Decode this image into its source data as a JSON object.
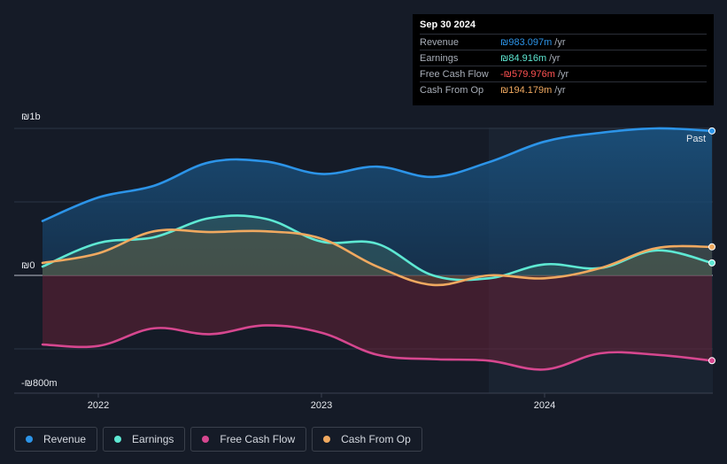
{
  "tooltip": {
    "date": "Sep 30 2024",
    "rows": [
      {
        "label": "Revenue",
        "value": "₪983.097m",
        "unit": "/yr",
        "color": "#2c94e8"
      },
      {
        "label": "Earnings",
        "value": "₪84.916m",
        "unit": "/yr",
        "color": "#5ee8d3"
      },
      {
        "label": "Free Cash Flow",
        "value": "-₪579.976m",
        "unit": "/yr",
        "color": "#ff5252"
      },
      {
        "label": "Cash From Op",
        "value": "₪194.179m",
        "unit": "/yr",
        "color": "#f0a960"
      }
    ]
  },
  "legend": {
    "items": [
      {
        "label": "Revenue",
        "color": "#2c94e8"
      },
      {
        "label": "Earnings",
        "color": "#5ee8d3"
      },
      {
        "label": "Free Cash Flow",
        "color": "#d6478f"
      },
      {
        "label": "Cash From Op",
        "color": "#f0a960"
      }
    ]
  },
  "chart_data": {
    "type": "area",
    "y_tick_labels": [
      "₪1b",
      "₪0",
      "-₪800m"
    ],
    "y_tick_values": [
      1000,
      0,
      -800
    ],
    "ylim": [
      -800,
      1000
    ],
    "x_tick_labels": [
      "2022",
      "2023",
      "2024"
    ],
    "x_tick_values": [
      2022.0,
      2023.0,
      2024.0
    ],
    "xlim": [
      2021.75,
      2024.75
    ],
    "past_label": "Past",
    "past_start": 2023.75,
    "series": [
      {
        "name": "Revenue",
        "color": "#2c94e8",
        "x": [
          2021.75,
          2022.0,
          2022.25,
          2022.5,
          2022.75,
          2023.0,
          2023.25,
          2023.5,
          2023.75,
          2024.0,
          2024.25,
          2024.5,
          2024.75
        ],
        "values": [
          370,
          530,
          610,
          770,
          775,
          690,
          740,
          670,
          770,
          910,
          970,
          1000,
          983
        ]
      },
      {
        "name": "Earnings",
        "color": "#5ee8d3",
        "x": [
          2021.75,
          2022.0,
          2022.25,
          2022.5,
          2022.75,
          2023.0,
          2023.25,
          2023.5,
          2023.75,
          2024.0,
          2024.25,
          2024.5,
          2024.75
        ],
        "values": [
          60,
          220,
          260,
          390,
          385,
          230,
          215,
          0,
          -20,
          75,
          50,
          170,
          85
        ]
      },
      {
        "name": "Free Cash Flow",
        "color": "#d6478f",
        "x": [
          2021.75,
          2022.0,
          2022.25,
          2022.5,
          2022.75,
          2023.0,
          2023.25,
          2023.5,
          2023.75,
          2024.0,
          2024.25,
          2024.5,
          2024.75
        ],
        "values": [
          -470,
          -480,
          -360,
          -400,
          -340,
          -390,
          -540,
          -570,
          -580,
          -640,
          -530,
          -540,
          -580
        ]
      },
      {
        "name": "Cash From Op",
        "color": "#f0a960",
        "x": [
          2021.75,
          2022.0,
          2022.25,
          2022.5,
          2022.75,
          2023.0,
          2023.25,
          2023.5,
          2023.75,
          2024.0,
          2024.25,
          2024.5,
          2024.75
        ],
        "values": [
          85,
          150,
          300,
          295,
          300,
          250,
          60,
          -65,
          0,
          -20,
          50,
          185,
          194
        ]
      }
    ],
    "grid": true,
    "legend_position": "bottom-left"
  }
}
